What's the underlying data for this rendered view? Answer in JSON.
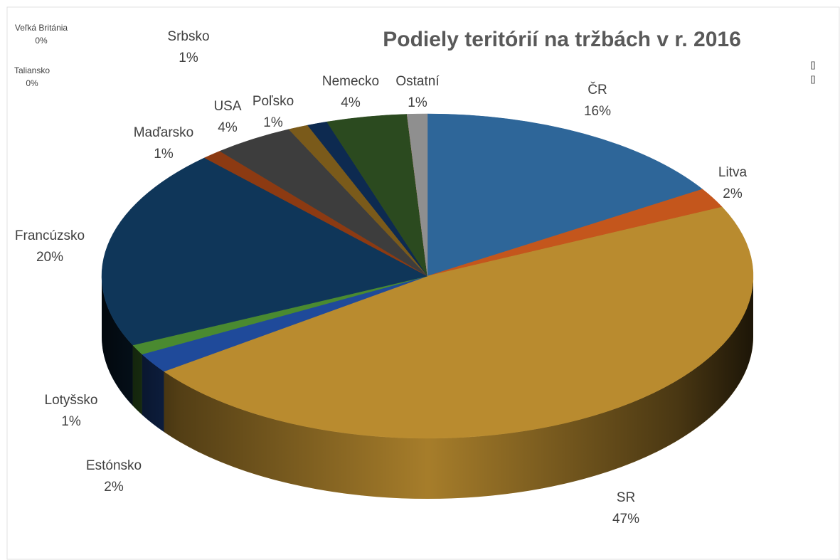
{
  "chart_data": {
    "type": "pie",
    "title": "Podiely teritórií na tržbách v r. 2016",
    "categories": [
      "ČR",
      "Litva",
      "SR",
      "Estónsko",
      "Lotyšsko",
      "Francúzsko",
      "Maďarsko",
      "USA",
      "Poľsko",
      "Srbsko",
      "Nemecko",
      "Veľká Británia",
      "Taliansko",
      "Ostatní"
    ],
    "values": [
      16,
      2,
      47,
      2,
      1,
      20,
      1,
      4,
      1,
      1,
      4,
      0,
      0,
      1
    ],
    "value_labels": [
      "16%",
      "2%",
      "47%",
      "2%",
      "1%",
      "20%",
      "1%",
      "4%",
      "1%",
      "1%",
      "4%",
      "0%",
      "0%",
      "1%"
    ],
    "colors": [
      "#2e6699",
      "#c4561c",
      "#b98b2f",
      "#1f4a9a",
      "#4a8a30",
      "#0f3659",
      "#8c3a12",
      "#3d3d3d",
      "#7a5a1a",
      "#0d2a50",
      "#2b4a1f",
      "#5a8fc0",
      "#d07030",
      "#8f8f8f"
    ],
    "legend": [
      "[]",
      "[]"
    ]
  }
}
